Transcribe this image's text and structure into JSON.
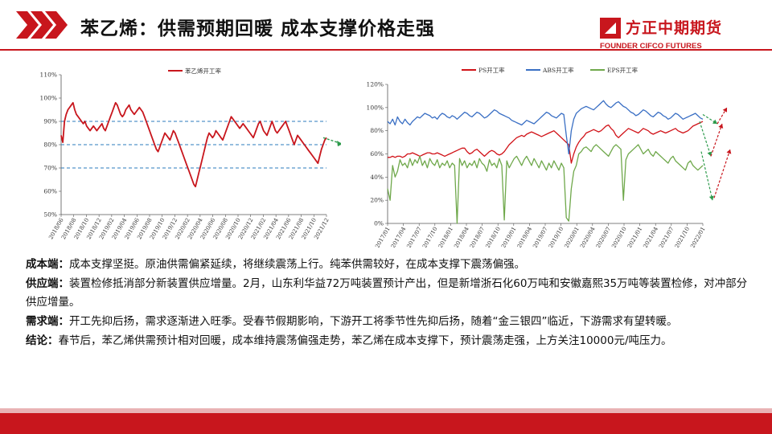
{
  "header": {
    "title": "苯乙烯：供需预期回暖  成本支撑价格走强",
    "logo_cn": "方正中期期货",
    "logo_en": "FOUNDER CIFCO FUTURES",
    "accent_color": "#c8161d"
  },
  "charts": [
    {
      "type": "line",
      "legend": [
        "苯乙烯开工率"
      ],
      "y_ticks": [
        "110%",
        "100%",
        "90%",
        "80%",
        "70%",
        "60%",
        "50%"
      ],
      "x_ticks": [
        "2018/06",
        "2018/08",
        "2018/10",
        "2018/12",
        "2019/02",
        "2019/04",
        "2019/06",
        "2019/08",
        "2019/10",
        "2019/12",
        "2020/02",
        "2020/04",
        "2020/06",
        "2020/08",
        "2020/10",
        "2020/12",
        "2021/02",
        "2021/04",
        "2021/06",
        "2021/08",
        "2021/10",
        "2021/12"
      ],
      "ylim": [
        50,
        110
      ],
      "reference_lines": [
        90,
        80,
        70
      ]
    },
    {
      "type": "line",
      "legend": [
        "PS开工率",
        "ABS开工率",
        "EPS开工率"
      ],
      "y_ticks": [
        "120%",
        "100%",
        "80%",
        "60%",
        "40%",
        "20%",
        "0%"
      ],
      "x_ticks": [
        "2017/01",
        "2017/04",
        "2017/07",
        "2017/10",
        "2018/01",
        "2018/04",
        "2018/07",
        "2018/10",
        "2019/01",
        "2019/04",
        "2019/07",
        "2019/10",
        "2020/01",
        "2020/04",
        "2020/07",
        "2020/10",
        "2021/01",
        "2021/04",
        "2021/07",
        "2021/10",
        "2022/01"
      ],
      "ylim": [
        0,
        120
      ]
    }
  ],
  "chart_data": [
    {
      "type": "line",
      "series": [
        {
          "name": "苯乙烯开工率",
          "values": [
            84,
            81,
            90,
            93,
            95,
            96,
            97,
            98,
            95,
            93,
            92,
            91,
            90,
            89,
            90,
            88,
            87,
            86,
            87,
            88,
            87,
            86,
            87,
            88,
            89,
            87,
            86,
            88,
            90,
            92,
            94,
            96,
            98,
            97,
            95,
            93,
            92,
            93,
            95,
            96,
            97,
            95,
            94,
            93,
            94,
            95,
            96,
            95,
            94,
            92,
            90,
            88,
            86,
            84,
            82,
            80,
            78,
            77,
            79,
            81,
            83,
            85,
            84,
            83,
            82,
            84,
            86,
            85,
            83,
            81,
            79,
            77,
            75,
            73,
            71,
            69,
            67,
            65,
            63,
            62,
            65,
            68,
            71,
            74,
            77,
            80,
            83,
            85,
            84,
            83,
            84,
            86,
            85,
            84,
            83,
            82,
            84,
            86,
            88,
            90,
            92,
            91,
            90,
            89,
            88,
            87,
            88,
            89,
            88,
            87,
            86,
            85,
            84,
            83,
            85,
            87,
            89,
            90,
            88,
            86,
            85,
            84,
            86,
            88,
            90,
            88,
            86,
            85,
            86,
            87,
            88,
            89,
            90,
            88,
            86,
            84,
            82,
            80,
            82,
            84,
            83,
            82,
            81,
            80,
            79,
            78,
            77,
            76,
            75,
            74,
            73,
            72,
            75,
            78,
            80,
            82,
            83
          ]
        }
      ],
      "ylim": [
        50,
        110
      ]
    },
    {
      "type": "line",
      "series": [
        {
          "name": "PS开工率",
          "color": "#d11218",
          "values": [
            57,
            57,
            58,
            57,
            58,
            58,
            57,
            58,
            60,
            60,
            61,
            60,
            59,
            58,
            59,
            60,
            61,
            61,
            60,
            60,
            61,
            60,
            59,
            58,
            59,
            60,
            61,
            62,
            63,
            64,
            65,
            65,
            62,
            60,
            61,
            63,
            64,
            62,
            60,
            58,
            60,
            62,
            63,
            62,
            60,
            59,
            60,
            62,
            65,
            68,
            70,
            72,
            74,
            75,
            76,
            75,
            77,
            78,
            79,
            78,
            77,
            76,
            75,
            76,
            77,
            78,
            79,
            80,
            78,
            76,
            74,
            72,
            70,
            68,
            52,
            60,
            66,
            70,
            73,
            75,
            78,
            79,
            80,
            81,
            80,
            79,
            80,
            82,
            84,
            85,
            82,
            80,
            76,
            74,
            76,
            78,
            80,
            82,
            81,
            80,
            79,
            78,
            80,
            82,
            81,
            80,
            78,
            77,
            78,
            79,
            80,
            79,
            78,
            79,
            80,
            81,
            82,
            80,
            79,
            78,
            79,
            80,
            82,
            84,
            85,
            86,
            87,
            88
          ]
        },
        {
          "name": "ABS开工率",
          "color": "#3a6fc4",
          "values": [
            88,
            86,
            90,
            85,
            92,
            88,
            86,
            90,
            87,
            85,
            88,
            90,
            92,
            91,
            93,
            95,
            94,
            93,
            91,
            92,
            90,
            93,
            95,
            94,
            92,
            91,
            93,
            92,
            90,
            92,
            94,
            96,
            95,
            93,
            92,
            94,
            96,
            95,
            93,
            91,
            92,
            94,
            96,
            98,
            97,
            95,
            94,
            93,
            92,
            91,
            89,
            88,
            87,
            86,
            85,
            87,
            89,
            88,
            87,
            86,
            88,
            90,
            92,
            94,
            96,
            95,
            93,
            92,
            91,
            93,
            95,
            94,
            76,
            60,
            80,
            90,
            95,
            97,
            99,
            100,
            101,
            100,
            99,
            98,
            100,
            102,
            104,
            106,
            103,
            101,
            100,
            102,
            104,
            105,
            103,
            101,
            100,
            98,
            96,
            95,
            93,
            94,
            96,
            98,
            97,
            95,
            93,
            92,
            94,
            96,
            95,
            93,
            92,
            90,
            91,
            93,
            95,
            94,
            92,
            90,
            91,
            92,
            93,
            94,
            95,
            93,
            91,
            90
          ]
        },
        {
          "name": "EPS开工率",
          "color": "#6fa84b",
          "values": [
            30,
            20,
            50,
            40,
            45,
            55,
            50,
            52,
            48,
            56,
            50,
            55,
            52,
            58,
            50,
            54,
            48,
            56,
            52,
            50,
            55,
            48,
            52,
            50,
            54,
            48,
            52,
            50,
            0,
            56,
            50,
            54,
            48,
            52,
            50,
            54,
            48,
            56,
            52,
            50,
            45,
            55,
            50,
            52,
            48,
            56,
            50,
            3,
            54,
            48,
            52,
            56,
            58,
            54,
            50,
            55,
            58,
            54,
            50,
            56,
            52,
            48,
            54,
            50,
            46,
            52,
            48,
            54,
            50,
            46,
            52,
            48,
            5,
            2,
            30,
            45,
            50,
            60,
            62,
            65,
            66,
            64,
            62,
            66,
            68,
            66,
            64,
            62,
            60,
            58,
            62,
            66,
            68,
            66,
            64,
            20,
            55,
            60,
            62,
            64,
            66,
            68,
            64,
            60,
            62,
            64,
            60,
            58,
            62,
            60,
            58,
            56,
            54,
            52,
            56,
            58,
            54,
            52,
            50,
            48,
            46,
            52,
            54,
            50,
            48,
            46,
            48,
            50
          ]
        }
      ],
      "ylim": [
        0,
        120
      ]
    }
  ],
  "content": {
    "cost_label": "成本端：",
    "cost_text": "成本支撑坚挺。原油供需偏紧延续，将继续震荡上行。纯苯供需较好，在成本支撑下震荡偏强。",
    "supply_label": "供应端：",
    "supply_text": "装置检修抵消部分新装置供应增量。2月，山东利华益72万吨装置预计产出，但是新增浙石化60万吨和安徽嘉熙35万吨等装置检修，对冲部分供应增量。",
    "demand_label": "需求端：",
    "demand_text": "开工先抑后扬，需求逐渐进入旺季。受春节假期影响，下游开工将季节性先抑后扬，随着“金三银四”临近，下游需求有望转暖。",
    "conclusion_label": "结论：",
    "conclusion_text": "春节后，苯乙烯供需预计相对回暖，成本维持震荡偏强走势，苯乙烯在成本支撑下，预计震荡走强，上方关注10000元/吨压力。"
  }
}
